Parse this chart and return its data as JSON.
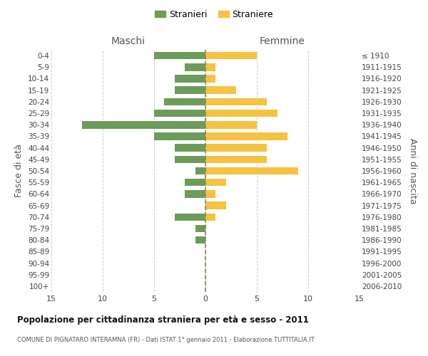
{
  "age_groups": [
    "0-4",
    "5-9",
    "10-14",
    "15-19",
    "20-24",
    "25-29",
    "30-34",
    "35-39",
    "40-44",
    "45-49",
    "50-54",
    "55-59",
    "60-64",
    "65-69",
    "70-74",
    "75-79",
    "80-84",
    "85-89",
    "90-94",
    "95-99",
    "100+"
  ],
  "birth_years": [
    "2006-2010",
    "2001-2005",
    "1996-2000",
    "1991-1995",
    "1986-1990",
    "1981-1985",
    "1976-1980",
    "1971-1975",
    "1966-1970",
    "1961-1965",
    "1956-1960",
    "1951-1955",
    "1946-1950",
    "1941-1945",
    "1936-1940",
    "1931-1935",
    "1926-1930",
    "1921-1925",
    "1916-1920",
    "1911-1915",
    "≤ 1910"
  ],
  "males": [
    5,
    2,
    3,
    3,
    4,
    5,
    12,
    5,
    3,
    3,
    1,
    2,
    2,
    0,
    3,
    1,
    1,
    0,
    0,
    0,
    0
  ],
  "females": [
    5,
    1,
    1,
    3,
    6,
    7,
    5,
    8,
    6,
    6,
    9,
    2,
    1,
    2,
    1,
    0,
    0,
    0,
    0,
    0,
    0
  ],
  "male_color": "#6d9b5a",
  "female_color": "#f5c242",
  "grid_color": "#cccccc",
  "center_line_color": "#888855",
  "bg_color": "#ffffff",
  "title": "Popolazione per cittadinanza straniera per età e sesso - 2011",
  "subtitle": "COMUNE DI PIGNATARO INTERAMNA (FR) - Dati ISTAT 1° gennaio 2011 - Elaborazione TUTTITALIA.IT",
  "ylabel_left": "Fasce di età",
  "ylabel_right": "Anni di nascita",
  "xlabel_left": "Maschi",
  "xlabel_right": "Femmine",
  "legend_male": "Stranieri",
  "legend_female": "Straniere",
  "xlim": 15,
  "bar_height": 0.65
}
